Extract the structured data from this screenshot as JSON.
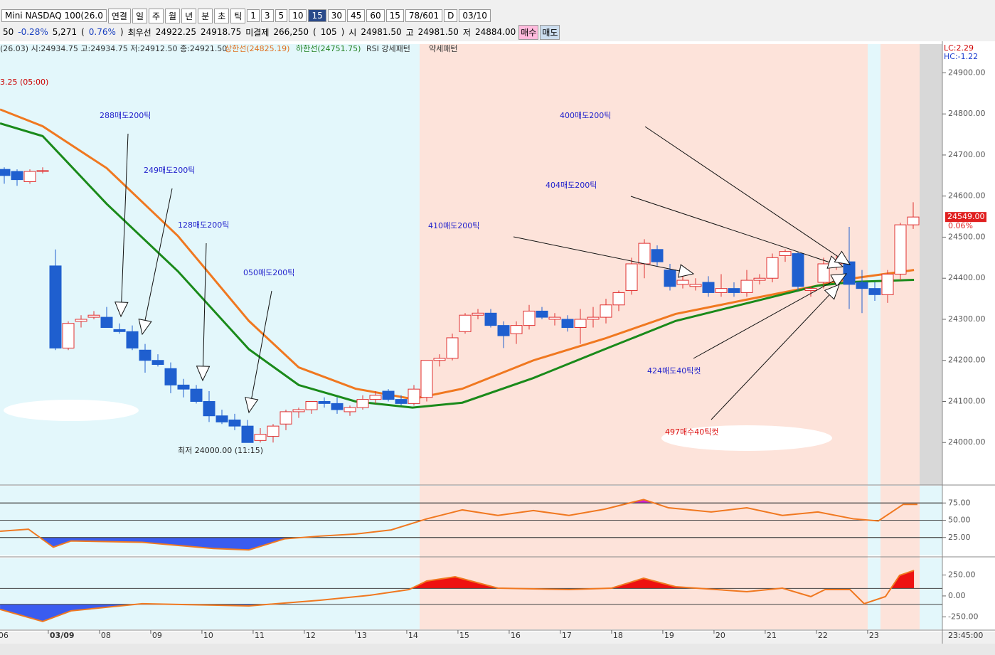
{
  "toolbar": {
    "items": [
      "Mini NASDAQ 100(26.0",
      "연결",
      "일",
      "주",
      "월",
      "년",
      "분",
      "초",
      "틱",
      "1",
      "3",
      "5",
      "10",
      "15",
      "30",
      "45",
      "60",
      "15",
      "78/601",
      "D",
      "03/10"
    ]
  },
  "info_bar": {
    "items": [
      "50",
      "-0.28%",
      "5,271",
      "(",
      "0.76%",
      ")",
      "최우선",
      "24922.25",
      "24918.75",
      "미결제",
      "266,250",
      "(",
      "105",
      ")",
      "시",
      "24981.50",
      "고",
      "24981.50",
      "저",
      "24884.00",
      "매수",
      "매도"
    ]
  },
  "chart_data": [
    {
      "type": "candlestick",
      "legend": [
        {
          "text": "(26.03) 시:24934.75 고:24934.75 저:24912.50 종:24921.50",
          "color": "#333333"
        },
        {
          "text": "상한선(24825.19)",
          "color": "#e07020"
        },
        {
          "text": "하한선(24751.75)",
          "color": "#208020"
        },
        {
          "text": "RSI 강세패턴",
          "color": "#333333"
        },
        {
          "text": "약세패턴",
          "color": "#333333"
        }
      ],
      "note_top": "3.25 (05:00)",
      "low_note": "최저 24000.00 (11:15)",
      "lc": "LC:2.29",
      "hc": "HC:-1.22",
      "cursor_time": "23:45:00",
      "last_price": {
        "value": 24549,
        "label": "24549.00"
      },
      "last_change": "0.06%",
      "up_color": "#e03030",
      "down_color": "#1f5fcf",
      "open": [
        24665,
        24660,
        24635,
        24660,
        24430,
        24230,
        24295,
        24305,
        24305,
        24275,
        24270,
        24225,
        24200,
        24180,
        24140,
        24130,
        24100,
        24065,
        24055,
        24040,
        24005,
        24015,
        24045,
        24075,
        24080,
        24100,
        24095,
        24075,
        24085,
        24105,
        24125,
        24105,
        24095,
        24110,
        24200,
        24205,
        24270,
        24310,
        24315,
        24285,
        24265,
        24285,
        24320,
        24300,
        24300,
        24280,
        24300,
        24305,
        24335,
        24370,
        24435,
        24470,
        24420,
        24385,
        24380,
        24390,
        24365,
        24375,
        24365,
        24395,
        24400,
        24455,
        24460,
        24370,
        24390,
        24435,
        24440,
        24390,
        24375,
        24360,
        24410,
        24530
      ],
      "high": [
        24670,
        24665,
        24665,
        24670,
        24470,
        24295,
        24310,
        24320,
        24330,
        24290,
        24285,
        24240,
        24215,
        24195,
        24155,
        24140,
        24125,
        24080,
        24070,
        24055,
        24035,
        24045,
        24080,
        24085,
        24100,
        24110,
        24110,
        24090,
        24115,
        24125,
        24130,
        24115,
        24140,
        24200,
        24215,
        24265,
        24315,
        24325,
        24325,
        24295,
        24295,
        24335,
        24330,
        24315,
        24310,
        24325,
        24330,
        24350,
        24370,
        24450,
        24495,
        24480,
        24435,
        24415,
        24400,
        24405,
        24410,
        24390,
        24420,
        24410,
        24460,
        24470,
        24465,
        24380,
        24450,
        24455,
        24525,
        24420,
        24390,
        24420,
        24535,
        24585
      ],
      "low": [
        24630,
        24625,
        24630,
        24655,
        24225,
        24225,
        24280,
        24300,
        24285,
        24265,
        24225,
        24170,
        24185,
        24120,
        24110,
        24095,
        24050,
        24045,
        24030,
        24000,
        24000,
        24000,
        24030,
        24060,
        24070,
        24085,
        24070,
        24065,
        24080,
        24095,
        24100,
        24090,
        24090,
        24100,
        24185,
        24200,
        24265,
        24300,
        24280,
        24230,
        24240,
        24275,
        24300,
        24285,
        24270,
        24240,
        24280,
        24290,
        24320,
        24360,
        24400,
        24430,
        24370,
        24375,
        24370,
        24355,
        24355,
        24355,
        24355,
        24385,
        24390,
        24440,
        24370,
        24355,
        24375,
        24420,
        24325,
        24315,
        24345,
        24340,
        24395,
        24520
      ],
      "close": [
        24650,
        24640,
        24660,
        24662,
        24230,
        24290,
        24300,
        24310,
        24280,
        24270,
        24230,
        24200,
        24190,
        24140,
        24130,
        24100,
        24065,
        24050,
        24040,
        24000,
        24020,
        24040,
        24075,
        24080,
        24100,
        24095,
        24080,
        24085,
        24105,
        24115,
        24105,
        24095,
        24130,
        24200,
        24205,
        24255,
        24310,
        24315,
        24285,
        24260,
        24285,
        24320,
        24305,
        24305,
        24280,
        24300,
        24305,
        24335,
        24365,
        24435,
        24485,
        24440,
        24380,
        24395,
        24385,
        24365,
        24375,
        24365,
        24395,
        24400,
        24450,
        24465,
        24380,
        24375,
        24435,
        24445,
        24385,
        24375,
        24360,
        24410,
        24530,
        24549
      ],
      "lines": [
        {
          "name": "상한선",
          "color": "#f07820",
          "x": [
            -0.33,
            3,
            8,
            13.56,
            19.11,
            23,
            27.44,
            31.89,
            35.78,
            41.33,
            46.89,
            52.44,
            58,
            63.56,
            66.33,
            71.06
          ],
          "values": [
            24811,
            24770,
            24668,
            24503,
            24296,
            24183,
            24131,
            24106,
            24131,
            24200,
            24253,
            24313,
            24348,
            24382,
            24400,
            24420
          ]
        },
        {
          "name": "하한선",
          "color": "#1a8a1a",
          "x": [
            -0.33,
            3,
            8,
            13.56,
            19.11,
            23,
            27.44,
            31.89,
            35.78,
            41.33,
            46.89,
            52.44,
            58,
            63.56,
            66.33,
            71.06
          ],
          "values": [
            24777,
            24746,
            24581,
            24417,
            24227,
            24140,
            24100,
            24085,
            24097,
            24157,
            24227,
            24296,
            24339,
            24382,
            24391,
            24396
          ]
        }
      ],
      "ylim": [
        23900,
        24970
      ],
      "yticks": [
        {
          "value": 24000,
          "label": "24000.00"
        },
        {
          "value": 24100,
          "label": "24100.00"
        },
        {
          "value": 24200,
          "label": "24200.00"
        },
        {
          "value": 24300,
          "label": "24300.00"
        },
        {
          "value": 24400,
          "label": "24400.00"
        },
        {
          "value": 24500,
          "label": "24500.00"
        },
        {
          "value": 24600,
          "label": "24600.00"
        },
        {
          "value": 24700,
          "label": "24700.00"
        },
        {
          "value": 24800,
          "label": "24800.00"
        },
        {
          "value": 24900,
          "label": "24900.00"
        }
      ],
      "xticks": [
        {
          "value": -0.56,
          "label": "06"
        },
        {
          "value": 3.44,
          "label": "03/09"
        },
        {
          "value": 7.44,
          "label": "08"
        },
        {
          "value": 11.44,
          "label": "09"
        },
        {
          "value": 15.44,
          "label": "10"
        },
        {
          "value": 19.44,
          "label": "11"
        },
        {
          "value": 23.44,
          "label": "12"
        },
        {
          "value": 27.44,
          "label": "13"
        },
        {
          "value": 31.44,
          "label": "14"
        },
        {
          "value": 35.44,
          "label": "15"
        },
        {
          "value": 39.44,
          "label": "16"
        },
        {
          "value": 43.44,
          "label": "17"
        },
        {
          "value": 47.44,
          "label": "18"
        },
        {
          "value": 51.44,
          "label": "19"
        },
        {
          "value": 55.44,
          "label": "20"
        },
        {
          "value": 59.44,
          "label": "21"
        },
        {
          "value": 63.44,
          "label": "22"
        },
        {
          "value": 67.44,
          "label": "23"
        }
      ],
      "annotations": [
        {
          "text": "288매도200틱",
          "color": "#2222cc"
        },
        {
          "text": "249매도200틱",
          "color": "#2222cc"
        },
        {
          "text": "128매도200틱",
          "color": "#2222cc"
        },
        {
          "text": "050매도200틱",
          "color": "#2222cc"
        },
        {
          "text": "410매도200틱",
          "color": "#2222cc"
        },
        {
          "text": "404매도200틱",
          "color": "#2222cc"
        },
        {
          "text": "400매도200틱",
          "color": "#2222cc"
        },
        {
          "text": "424매도40틱컷",
          "color": "#2222cc"
        },
        {
          "text": "497매수40틱컷",
          "color": "#dd1111"
        }
      ]
    },
    {
      "type": "line",
      "color": "#f07820",
      "low_fill": "#3a5cf0",
      "high_fill": "#d020d0",
      "x": [
        -0.33,
        1.89,
        3.83,
        5.22,
        10.78,
        16.33,
        19.11,
        21.89,
        24.67,
        27.44,
        30.22,
        33,
        35.78,
        38.56,
        41.33,
        44.11,
        46.89,
        49.94,
        51.89,
        55.22,
        58,
        60.78,
        63.56,
        66.33,
        68.28,
        70.22,
        71.33
      ],
      "values": [
        34,
        37,
        11,
        20,
        18,
        9,
        7,
        23,
        27,
        30,
        36,
        52,
        65,
        57,
        64,
        57,
        66,
        80,
        68,
        62,
        68,
        57,
        62,
        52,
        49,
        73,
        73
      ],
      "ylim": [
        0,
        100
      ],
      "yticks": [
        {
          "value": 25,
          "label": "25.00"
        },
        {
          "value": 50,
          "label": "50.00"
        },
        {
          "value": 75,
          "label": "75.00"
        }
      ],
      "levels": [
        25,
        75
      ]
    },
    {
      "type": "area",
      "color": "#f07820",
      "low_fill": "#3a5cf0",
      "high_fill": "#ee1111",
      "x": [
        -0.33,
        3,
        5.22,
        10.78,
        16.33,
        19.11,
        24.67,
        28.56,
        31.61,
        33,
        35.22,
        38.56,
        44.11,
        47.44,
        49.94,
        52.44,
        58,
        60.78,
        63,
        64.11,
        66.06,
        67.17,
        68.83,
        69.94,
        71.06
      ],
      "values": [
        -161,
        -305,
        -178,
        -93,
        -110,
        -119,
        -51,
        8,
        76,
        178,
        229,
        93,
        76,
        93,
        212,
        110,
        51,
        93,
        -8,
        76,
        76,
        -93,
        -8,
        246,
        305
      ],
      "ylim": [
        -400,
        450
      ],
      "yticks": [
        {
          "value": -250,
          "label": "-250.00"
        },
        {
          "value": 0,
          "label": "0.00"
        },
        {
          "value": 250,
          "label": "250.00"
        }
      ],
      "levels": [
        -100,
        90
      ]
    }
  ]
}
